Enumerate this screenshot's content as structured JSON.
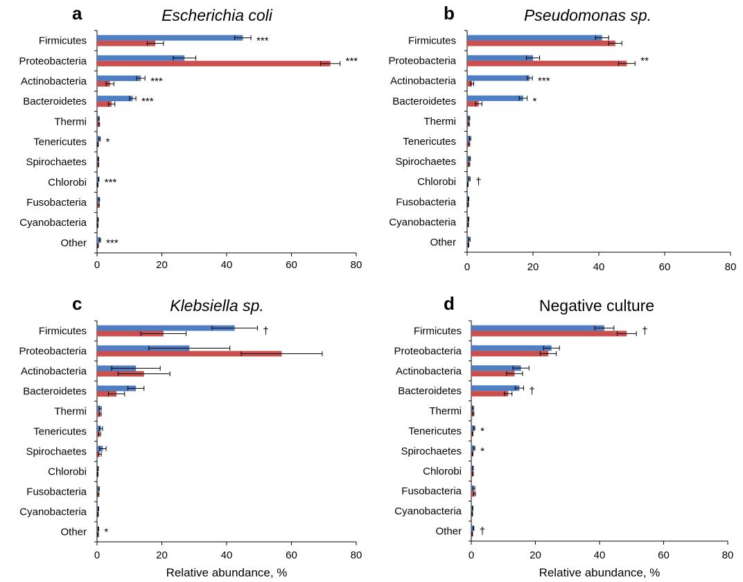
{
  "colors": {
    "series_blue": "#4f7ec2",
    "series_red": "#c9504e",
    "axis": "#000000"
  },
  "chart_data": [
    {
      "type": "bar",
      "orientation": "horizontal",
      "panel": "a",
      "title": "Escherichia coli",
      "title_italic": true,
      "xlabel": "",
      "xlim": [
        0,
        80
      ],
      "xticks": [
        0,
        20,
        40,
        60,
        80
      ],
      "categories": [
        "Firmicutes",
        "Proteobacteria",
        "Actinobacteria",
        "Bacteroidetes",
        "Thermi",
        "Tenericutes",
        "Spirochaetes",
        "Chlorobi",
        "Fusobacteria",
        "Cyanobacteria",
        "Other"
      ],
      "series": [
        {
          "color": "#4f7ec2",
          "values": [
            45,
            27,
            13.5,
            11,
            0.5,
            0.8,
            0.4,
            0.5,
            0.6,
            0.3,
            0.9
          ],
          "errors": [
            2.5,
            3.5,
            1.3,
            1,
            0.2,
            0.2,
            0.1,
            0.1,
            0.2,
            0.1,
            0.2
          ]
        },
        {
          "color": "#c9504e",
          "values": [
            18,
            72,
            4,
            4.5,
            0.6,
            0.3,
            0.4,
            0.2,
            0.5,
            0.2,
            0.3
          ],
          "errors": [
            2.5,
            3,
            1.2,
            1,
            0.2,
            0.1,
            0.1,
            0.1,
            0.2,
            0.1,
            0.1
          ]
        }
      ],
      "annotations": [
        "***",
        "***",
        "***",
        "***",
        "",
        "*",
        "",
        "***",
        "",
        "",
        "***"
      ]
    },
    {
      "type": "bar",
      "orientation": "horizontal",
      "panel": "b",
      "title": "Pseudomonas sp.",
      "title_italic": true,
      "xlabel": "",
      "xlim": [
        0,
        80
      ],
      "xticks": [
        0,
        20,
        40,
        60,
        80
      ],
      "categories": [
        "Firmicutes",
        "Proteobacteria",
        "Actinobacteria",
        "Bacteroidetes",
        "Thermi",
        "Tenericutes",
        "Spirochaetes",
        "Chlorobi",
        "Fusobacteria",
        "Cyanobacteria",
        "Other"
      ],
      "series": [
        {
          "color": "#4f7ec2",
          "values": [
            41,
            20,
            19,
            17,
            0.6,
            0.9,
            0.8,
            0.7,
            0.4,
            0.4,
            0.7
          ],
          "errors": [
            2,
            2,
            0.8,
            1.2,
            0.2,
            0.2,
            0.2,
            0.2,
            0.1,
            0.1,
            0.2
          ]
        },
        {
          "color": "#c9504e",
          "values": [
            45,
            48.5,
            1.5,
            3.5,
            0.5,
            0.6,
            0.6,
            0.2,
            0.3,
            0.3,
            0.4
          ],
          "errors": [
            2,
            2.5,
            0.5,
            1,
            0.2,
            0.2,
            0.2,
            0.1,
            0.1,
            0.1,
            0.1
          ]
        }
      ],
      "annotations": [
        "",
        "**",
        "***",
        "*",
        "",
        "",
        "",
        "†",
        "",
        "",
        ""
      ]
    },
    {
      "type": "bar",
      "orientation": "horizontal",
      "panel": "c",
      "title": "Klebsiella sp.",
      "title_italic": true,
      "xlabel": "Relative abundance, %",
      "xlim": [
        0,
        80
      ],
      "xticks": [
        0,
        20,
        40,
        60,
        80
      ],
      "categories": [
        "Firmicutes",
        "Proteobacteria",
        "Actinobacteria",
        "Bacteroidetes",
        "Thermi",
        "Tenericutes",
        "Spirochaetes",
        "Chlorobi",
        "Fusobacteria",
        "Cyanobacteria",
        "Other"
      ],
      "series": [
        {
          "color": "#4f7ec2",
          "values": [
            42.5,
            28.5,
            12,
            12,
            1,
            1.2,
            1.8,
            0.3,
            0.5,
            0.4,
            0.4
          ],
          "errors": [
            7,
            12.5,
            7.5,
            2.5,
            0.3,
            0.5,
            1,
            0.1,
            0.2,
            0.1,
            0.1
          ]
        },
        {
          "color": "#c9504e",
          "values": [
            20.5,
            57,
            14.5,
            6,
            1,
            0.8,
            0.8,
            0.2,
            0.4,
            0.3,
            0.3
          ],
          "errors": [
            7,
            12.5,
            8,
            2.5,
            0.3,
            0.3,
            0.5,
            0.1,
            0.2,
            0.1,
            0.1
          ]
        }
      ],
      "annotations": [
        "†",
        "",
        "",
        "",
        "",
        "",
        "",
        "",
        "",
        "",
        "*"
      ]
    },
    {
      "type": "bar",
      "orientation": "horizontal",
      "panel": "d",
      "title": "Negative culture",
      "title_italic": false,
      "xlabel": "Relative abundance, %",
      "xlim": [
        0,
        80
      ],
      "xticks": [
        0,
        20,
        40,
        60,
        80
      ],
      "categories": [
        "Firmicutes",
        "Proteobacteria",
        "Actinobacteria",
        "Bacteroidetes",
        "Thermi",
        "Tenericutes",
        "Spirochaetes",
        "Chlorobi",
        "Fusobacteria",
        "Cyanobacteria",
        "Other"
      ],
      "series": [
        {
          "color": "#4f7ec2",
          "values": [
            41.5,
            25,
            15.5,
            15,
            0.5,
            0.9,
            0.9,
            0.5,
            0.8,
            0.4,
            0.7
          ],
          "errors": [
            3,
            2.5,
            2.5,
            1.3,
            0.2,
            0.2,
            0.2,
            0.1,
            0.3,
            0.1,
            0.1
          ]
        },
        {
          "color": "#c9504e",
          "values": [
            48.5,
            24,
            13.5,
            11.5,
            0.6,
            0.4,
            0.4,
            0.5,
            1,
            0.3,
            0.3
          ],
          "errors": [
            3,
            2.5,
            2.5,
            1.2,
            0.2,
            0.1,
            0.1,
            0.1,
            0.3,
            0.1,
            0.1
          ]
        }
      ],
      "annotations": [
        "†",
        "",
        "",
        "†",
        "",
        "*",
        "*",
        "",
        "",
        "",
        "†"
      ]
    }
  ]
}
